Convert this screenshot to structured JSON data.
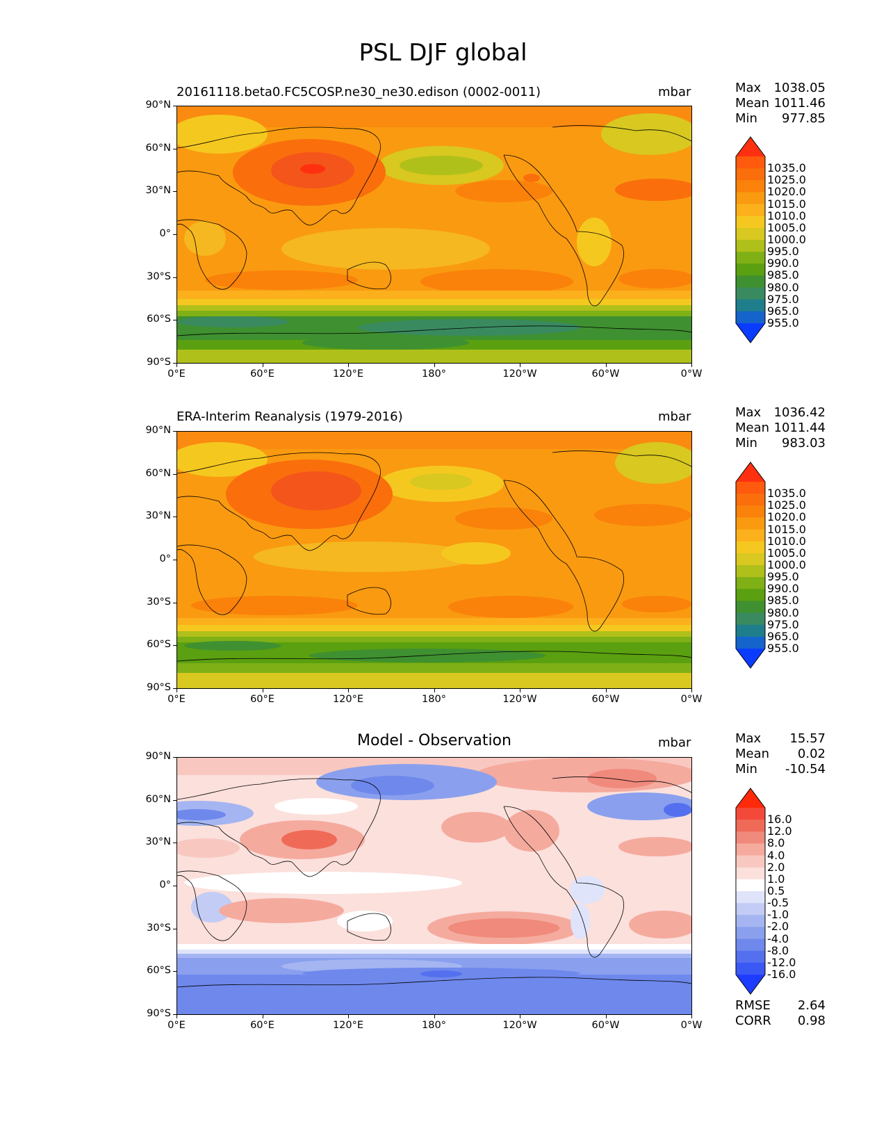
{
  "figure_title": "PSL DJF global",
  "lat_ticks": [
    "90°N",
    "60°N",
    "30°N",
    "0°",
    "30°S",
    "60°S",
    "90°S"
  ],
  "lon_ticks": [
    "0°E",
    "60°E",
    "120°E",
    "180°",
    "120°W",
    "60°W",
    "0°W"
  ],
  "colorbar_abs": {
    "labels": [
      "1035.0",
      "1025.0",
      "1020.0",
      "1015.0",
      "1010.0",
      "1005.0",
      "1000.0",
      "995.0",
      "990.0",
      "985.0",
      "980.0",
      "975.0",
      "965.0",
      "955.0"
    ],
    "colors": [
      "#ff3010",
      "#ff5a0e",
      "#fa6e0c",
      "#fa820a",
      "#fa9a10",
      "#fbb01c",
      "#f5c820",
      "#d8c820",
      "#b0c01a",
      "#7fb016",
      "#5aa010",
      "#3f9030",
      "#3a8a60",
      "#1e7e8c",
      "#1464cc",
      "#0a3cff"
    ]
  },
  "colorbar_diff": {
    "labels": [
      "16.0",
      "12.0",
      "8.0",
      "4.0",
      "2.0",
      "1.0",
      "0.5",
      "-0.5",
      "-1.0",
      "-2.0",
      "-4.0",
      "-8.0",
      "-12.0",
      "-16.0"
    ],
    "colors": [
      "#ff2a0a",
      "#f4493a",
      "#f06a58",
      "#f08a7c",
      "#f5aa9e",
      "#f8c8c0",
      "#fbe0dc",
      "#ffffff",
      "#dfe4fb",
      "#c2ccf5",
      "#a4b5f1",
      "#8aa0ee",
      "#6e88ec",
      "#5470ee",
      "#3a58f4",
      "#1e3cff"
    ]
  },
  "panels": [
    {
      "subtitle": "20161118.beta0.FC5COSP.ne30_ne30.edison (0002-0011)",
      "units": "mbar",
      "stats": [
        {
          "label": "Max",
          "value": "1038.05"
        },
        {
          "label": "Mean",
          "value": "1011.46"
        },
        {
          "label": "Min",
          "value": "977.85"
        }
      ]
    },
    {
      "subtitle": "ERA-Interim Reanalysis (1979-2016)",
      "units": "mbar",
      "stats": [
        {
          "label": "Max",
          "value": "1036.42"
        },
        {
          "label": "Mean",
          "value": "1011.44"
        },
        {
          "label": "Min",
          "value": "983.03"
        }
      ]
    },
    {
      "subtitle": "Model - Observation",
      "units": "mbar",
      "stats": [
        {
          "label": "Max",
          "value": "15.57"
        },
        {
          "label": "Mean",
          "value": "0.02"
        },
        {
          "label": "Min",
          "value": "-10.54"
        }
      ],
      "metrics": [
        {
          "label": "RMSE",
          "value": "2.64"
        },
        {
          "label": "CORR",
          "value": "0.98"
        }
      ]
    }
  ]
}
